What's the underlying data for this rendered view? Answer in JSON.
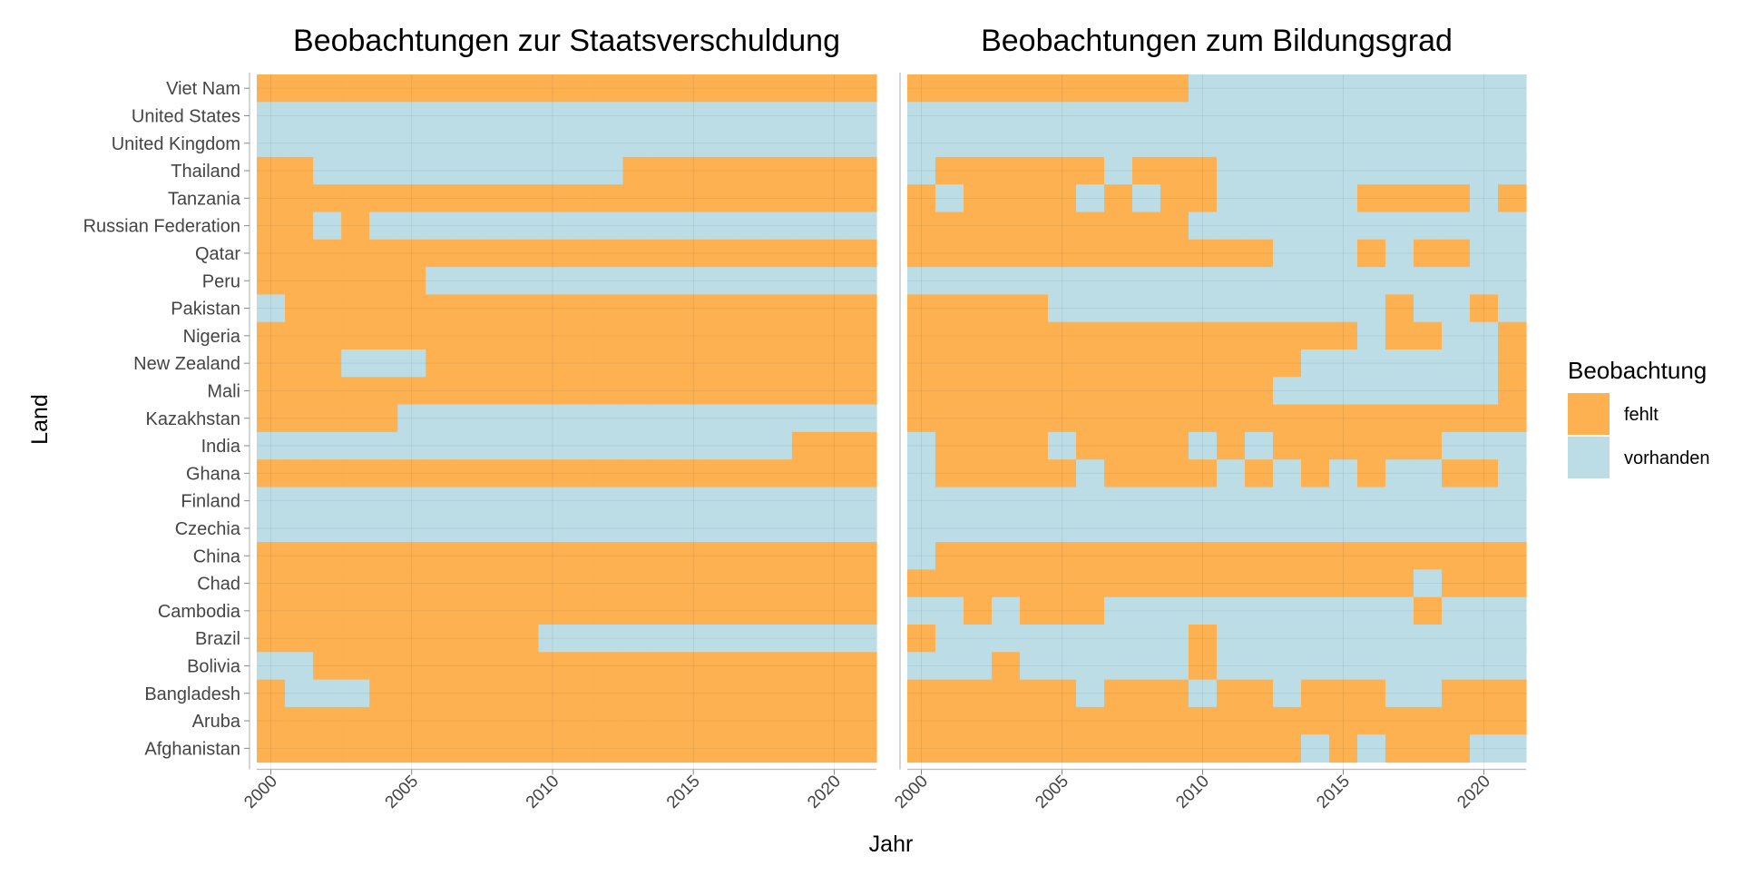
{
  "chart_data": {
    "type": "heatmap",
    "legend": {
      "title": "Beobachtung",
      "position": "right",
      "entries": [
        {
          "key": "fehlt",
          "label": "fehlt",
          "color": "#FDB151"
        },
        {
          "key": "vorhanden",
          "label": "vorhanden",
          "color": "#BCDDE6"
        }
      ]
    },
    "xlabel": "Jahr",
    "ylabel": "Land",
    "grid": true,
    "years": [
      2000,
      2001,
      2002,
      2003,
      2004,
      2005,
      2006,
      2007,
      2008,
      2009,
      2010,
      2011,
      2012,
      2013,
      2014,
      2015,
      2016,
      2017,
      2018,
      2019,
      2020,
      2021
    ],
    "x_ticks": [
      "2000",
      "2005",
      "2010",
      "2015",
      "2020"
    ],
    "countries": [
      "Viet Nam",
      "United States",
      "United Kingdom",
      "Thailand",
      "Tanzania",
      "Russian Federation",
      "Qatar",
      "Peru",
      "Pakistan",
      "Nigeria",
      "New Zealand",
      "Mali",
      "Kazakhstan",
      "India",
      "Ghana",
      "Finland",
      "Czechia",
      "China",
      "Chad",
      "Cambodia",
      "Brazil",
      "Bolivia",
      "Bangladesh",
      "Aruba",
      "Afghanistan"
    ],
    "value_codes": {
      "0": "fehlt",
      "1": "vorhanden"
    },
    "panels": [
      {
        "title": "Beobachtungen zur Staatsverschuldung",
        "rows": [
          "0000000000000000000000",
          "1111111111111111111111",
          "1111111111111111111111",
          "0011111111111000000000",
          "0000000000000000000000",
          "0010111111111111111111",
          "0000000000000000000000",
          "0000001111111111111111",
          "1000000000000000000000",
          "0000000000000000000000",
          "0001110000000000000000",
          "0000000000000000000000",
          "0000011111111111111111",
          "1111111111111111111000",
          "0000000000000000000000",
          "1111111111111111111111",
          "1111111111111111111111",
          "0000000000000000000000",
          "0000000000000000000000",
          "0000000000000000000000",
          "0000000000111111111111",
          "1100000000000000000000",
          "0111000000000000000000",
          "0000000000000000000000",
          "0000000000000000000000"
        ]
      },
      {
        "title": "Beobachtungen zum Bildungsgrad",
        "rows": [
          "0000000000111111111111",
          "1111111111111111111111",
          "1111111111111111111111",
          "1000000100011111111111",
          "0100001010011111000010",
          "0000000000111111111111",
          "0000000000000111010011",
          "1111111111111111111111",
          "0000011111111111101101",
          "0000000000000000100110",
          "0000000000000011111110",
          "0000000000000111111110",
          "0000000000000000000000",
          "1000010000101000000111",
          "1000001000010101011001",
          "1111111111111111111111",
          "1111111111111111111111",
          "1000000000000000000000",
          "0000000000000000001000",
          "1101000111111111110111",
          "0111111111011111111111",
          "1110111111011111111111",
          "0000001000100100011000",
          "0000000000000000000000",
          "0000000000000010100011"
        ]
      }
    ]
  }
}
